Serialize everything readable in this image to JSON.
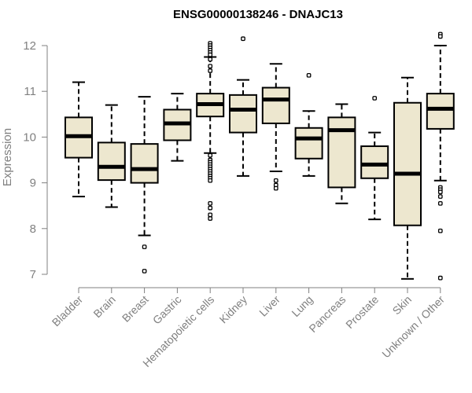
{
  "chart_data": {
    "type": "boxplot",
    "title": "ENSG00000138246 - DNAJC13",
    "xlabel": "",
    "ylabel": "Expression",
    "ylim": [
      6.85,
      12.25
    ],
    "yticks": [
      7,
      8,
      9,
      10,
      11,
      12
    ],
    "colors": {
      "box_fill": "#EDE7CF",
      "stroke": "#000000",
      "axis": "#808080",
      "label": "#808080"
    },
    "categories": [
      "Bladder",
      "Brain",
      "Breast",
      "Gastric",
      "Hematopoietic cells",
      "Kidney",
      "Liver",
      "Lung",
      "Pancreas",
      "Prostate",
      "Skin",
      "Unknown / Other"
    ],
    "boxes": [
      {
        "category": "Bladder",
        "whisker_low": 8.7,
        "q1": 9.55,
        "median": 10.02,
        "q3": 10.43,
        "whisker_high": 11.2,
        "outliers": []
      },
      {
        "category": "Brain",
        "whisker_low": 8.47,
        "q1": 9.06,
        "median": 9.35,
        "q3": 9.88,
        "whisker_high": 10.7,
        "outliers": []
      },
      {
        "category": "Breast",
        "whisker_low": 7.85,
        "q1": 9.0,
        "median": 9.3,
        "q3": 9.85,
        "whisker_high": 10.88,
        "outliers": [
          7.6,
          7.07
        ]
      },
      {
        "category": "Gastric",
        "whisker_low": 9.48,
        "q1": 9.93,
        "median": 10.3,
        "q3": 10.6,
        "whisker_high": 10.95,
        "outliers": []
      },
      {
        "category": "Hematopoietic cells",
        "whisker_low": 9.65,
        "q1": 10.45,
        "median": 10.72,
        "q3": 10.95,
        "whisker_high": 11.75,
        "outliers": [
          12.05,
          12.0,
          11.95,
          11.9,
          11.85,
          11.8,
          11.7,
          11.55,
          11.45,
          9.6,
          9.5,
          9.45,
          9.4,
          9.35,
          9.3,
          9.25,
          9.2,
          9.15,
          9.1,
          9.05,
          8.55,
          8.45,
          8.3,
          8.22
        ]
      },
      {
        "category": "Kidney",
        "whisker_low": 9.15,
        "q1": 10.1,
        "median": 10.6,
        "q3": 10.92,
        "whisker_high": 11.25,
        "outliers": [
          12.15
        ]
      },
      {
        "category": "Liver",
        "whisker_low": 9.25,
        "q1": 10.3,
        "median": 10.82,
        "q3": 11.08,
        "whisker_high": 11.6,
        "outliers": [
          9.05,
          8.95,
          8.88
        ]
      },
      {
        "category": "Lung",
        "whisker_low": 9.15,
        "q1": 9.53,
        "median": 9.97,
        "q3": 10.2,
        "whisker_high": 10.57,
        "outliers": [
          11.35
        ]
      },
      {
        "category": "Pancreas",
        "whisker_low": 8.55,
        "q1": 8.9,
        "median": 10.15,
        "q3": 10.43,
        "whisker_high": 10.72,
        "outliers": []
      },
      {
        "category": "Prostate",
        "whisker_low": 8.2,
        "q1": 9.1,
        "median": 9.4,
        "q3": 9.8,
        "whisker_high": 10.1,
        "outliers": [
          10.85
        ]
      },
      {
        "category": "Skin",
        "whisker_low": 6.9,
        "q1": 8.07,
        "median": 9.2,
        "q3": 10.75,
        "whisker_high": 11.3,
        "outliers": []
      },
      {
        "category": "Unknown / Other",
        "whisker_low": 9.05,
        "q1": 10.18,
        "median": 10.62,
        "q3": 10.95,
        "whisker_high": 12.0,
        "outliers": [
          12.25,
          12.2,
          8.9,
          8.85,
          8.8,
          8.7,
          8.55,
          7.95,
          6.92
        ]
      }
    ]
  }
}
